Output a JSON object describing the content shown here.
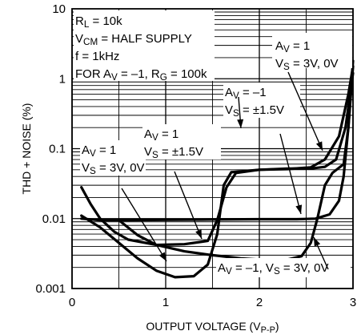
{
  "chart_data": {
    "type": "line",
    "title": "",
    "xlabel": "OUTPUT VOLTAGE (V",
    "xlabel_sub": "P-P",
    "xlabel_close": ")",
    "ylabel": "THD + NOISE (%)",
    "xlim": [
      0,
      3
    ],
    "ylim": [
      0.001,
      10
    ],
    "y_scale": "log",
    "grid": true,
    "x_ticks": [
      {
        "value": 0,
        "label": "0"
      },
      {
        "value": 1,
        "label": "1"
      },
      {
        "value": 2,
        "label": "2"
      },
      {
        "value": 3,
        "label": "3"
      }
    ],
    "y_ticks": [
      {
        "value": 0.001,
        "label": "0.001"
      },
      {
        "value": 0.01,
        "label": "0.01"
      },
      {
        "value": 0.1,
        "label": "0.1"
      },
      {
        "value": 1,
        "label": "1"
      },
      {
        "value": 10,
        "label": "10"
      }
    ],
    "conditions": [
      [
        {
          "text": "R"
        },
        {
          "text": "L",
          "sub": true
        },
        {
          "text": " = 10k"
        }
      ],
      [
        {
          "text": "V"
        },
        {
          "text": "CM",
          "sub": true
        },
        {
          "text": " = HALF SUPPLY"
        }
      ],
      [
        {
          "text": "f = 1kHz"
        }
      ],
      [
        {
          "text": "FOR A"
        },
        {
          "text": "V",
          "sub": true
        },
        {
          "text": " = –1, R"
        },
        {
          "text": "G",
          "sub": true
        },
        {
          "text": " = 100k"
        }
      ]
    ],
    "series": [
      {
        "line1": [
          {
            "text": "A"
          },
          {
            "text": "V",
            "sub": true
          },
          {
            "text": " = 1"
          }
        ],
        "line2": [
          {
            "text": "V"
          },
          {
            "text": "S",
            "sub": true
          },
          {
            "text": " = 3V, 0V"
          }
        ],
        "points": [
          [
            0.1,
            0.011
          ],
          [
            0.3,
            0.0075
          ],
          [
            0.5,
            0.0045
          ],
          [
            0.7,
            0.0027
          ],
          [
            0.9,
            0.0018
          ],
          [
            1.1,
            0.00145
          ],
          [
            1.3,
            0.0015
          ],
          [
            1.45,
            0.0022
          ],
          [
            1.55,
            0.006
          ],
          [
            1.62,
            0.03
          ],
          [
            1.7,
            0.046
          ],
          [
            2.0,
            0.05
          ],
          [
            2.3,
            0.051
          ],
          [
            2.55,
            0.054
          ],
          [
            2.7,
            0.07
          ],
          [
            2.85,
            0.15
          ],
          [
            2.95,
            0.6
          ],
          [
            3.0,
            1.5
          ]
        ]
      },
      {
        "line1": [
          {
            "text": "A"
          },
          {
            "text": "V",
            "sub": true
          },
          {
            "text": " = 1"
          }
        ],
        "line2": [
          {
            "text": "V"
          },
          {
            "text": "S",
            "sub": true
          },
          {
            "text": " = ±1.5V"
          }
        ],
        "points": [
          [
            0.1,
            0.028
          ],
          [
            0.2,
            0.016
          ],
          [
            0.3,
            0.01
          ],
          [
            0.45,
            0.0065
          ],
          [
            0.6,
            0.005
          ],
          [
            0.9,
            0.0042
          ],
          [
            1.2,
            0.0043
          ],
          [
            1.45,
            0.0048
          ],
          [
            1.55,
            0.0095
          ],
          [
            1.65,
            0.028
          ],
          [
            1.75,
            0.045
          ],
          [
            2.0,
            0.05
          ],
          [
            2.3,
            0.052
          ],
          [
            2.55,
            0.052
          ],
          [
            2.7,
            0.055
          ],
          [
            2.82,
            0.07
          ],
          [
            2.92,
            0.2
          ],
          [
            3.0,
            1.2
          ]
        ]
      },
      {
        "line1": [
          {
            "text": "A"
          },
          {
            "text": "V",
            "sub": true
          },
          {
            "text": " = –1"
          }
        ],
        "line2": [
          {
            "text": "V"
          },
          {
            "text": "S",
            "sub": true
          },
          {
            "text": " = ±1.5V"
          }
        ],
        "points": [
          [
            0.1,
            0.01
          ],
          [
            0.3,
            0.0095
          ],
          [
            0.6,
            0.0095
          ],
          [
            1.0,
            0.0096
          ],
          [
            1.5,
            0.0097
          ],
          [
            2.0,
            0.0098
          ],
          [
            2.4,
            0.0098
          ],
          [
            2.6,
            0.01
          ],
          [
            2.75,
            0.0115
          ],
          [
            2.85,
            0.018
          ],
          [
            2.9,
            0.04
          ],
          [
            2.95,
            0.2
          ],
          [
            3.0,
            1.5
          ]
        ]
      },
      {
        "line1": [
          {
            "text": "A"
          },
          {
            "text": "V",
            "sub": true
          },
          {
            "text": " = –1, V"
          },
          {
            "text": "S",
            "sub": true
          },
          {
            "text": " = 3V, 0V"
          }
        ],
        "line2": [],
        "points": [
          [
            0.5,
            0.0095
          ],
          [
            0.7,
            0.0058
          ],
          [
            0.9,
            0.0042
          ],
          [
            1.2,
            0.0034
          ],
          [
            1.5,
            0.003
          ],
          [
            1.8,
            0.0027
          ],
          [
            2.0,
            0.0026
          ],
          [
            2.3,
            0.0026
          ],
          [
            2.45,
            0.0029
          ],
          [
            2.55,
            0.0045
          ],
          [
            2.62,
            0.01
          ],
          [
            2.7,
            0.03
          ],
          [
            2.78,
            0.045
          ],
          [
            2.9,
            0.06
          ],
          [
            2.95,
            0.2
          ],
          [
            3.0,
            1.8
          ]
        ]
      }
    ]
  }
}
